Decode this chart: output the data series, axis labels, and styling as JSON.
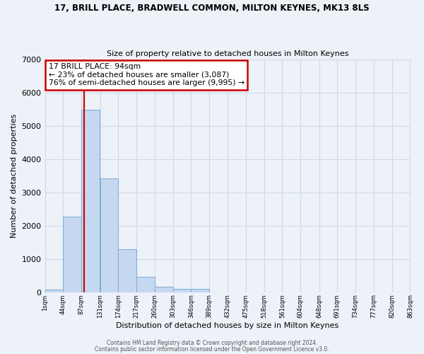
{
  "title1": "17, BRILL PLACE, BRADWELL COMMON, MILTON KEYNES, MK13 8LS",
  "title2": "Size of property relative to detached houses in Milton Keynes",
  "xlabel": "Distribution of detached houses by size in Milton Keynes",
  "ylabel": "Number of detached properties",
  "bar_color": "#c5d8f0",
  "bar_edge_color": "#7aadd4",
  "background_color": "#edf1f8",
  "grid_color": "#d0d8e8",
  "annotation_box_edgecolor": "#cc0000",
  "annotation_line_color": "#cc0000",
  "annotation_text_line1": "17 BRILL PLACE: 94sqm",
  "annotation_text_line2": "← 23% of detached houses are smaller (3,087)",
  "annotation_text_line3": "76% of semi-detached houses are larger (9,995) →",
  "vline_x": 94,
  "vline_color": "#cc0000",
  "footer1": "Contains HM Land Registry data © Crown copyright and database right 2024.",
  "footer2": "Contains public sector information licensed under the Open Government Licence v3.0.",
  "bins_left": [
    1,
    44,
    87,
    131,
    174,
    217,
    260,
    303,
    346,
    389,
    432,
    475,
    518,
    561,
    604,
    648,
    691,
    734,
    777,
    820
  ],
  "bin_width": 43,
  "bar_heights": [
    80,
    2270,
    5490,
    3430,
    1300,
    460,
    170,
    95,
    90,
    0,
    0,
    0,
    0,
    0,
    0,
    0,
    0,
    0,
    0,
    0
  ],
  "xlim_left": 1,
  "xlim_right": 863,
  "ylim_top": 7000,
  "yticks": [
    0,
    1000,
    2000,
    3000,
    4000,
    5000,
    6000,
    7000
  ],
  "tick_labels": [
    "1sqm",
    "44sqm",
    "87sqm",
    "131sqm",
    "174sqm",
    "217sqm",
    "260sqm",
    "303sqm",
    "346sqm",
    "389sqm",
    "432sqm",
    "475sqm",
    "518sqm",
    "561sqm",
    "604sqm",
    "648sqm",
    "691sqm",
    "734sqm",
    "777sqm",
    "820sqm",
    "863sqm"
  ],
  "tick_positions": [
    1,
    44,
    87,
    131,
    174,
    217,
    260,
    303,
    346,
    389,
    432,
    475,
    518,
    561,
    604,
    648,
    691,
    734,
    777,
    820,
    863
  ]
}
